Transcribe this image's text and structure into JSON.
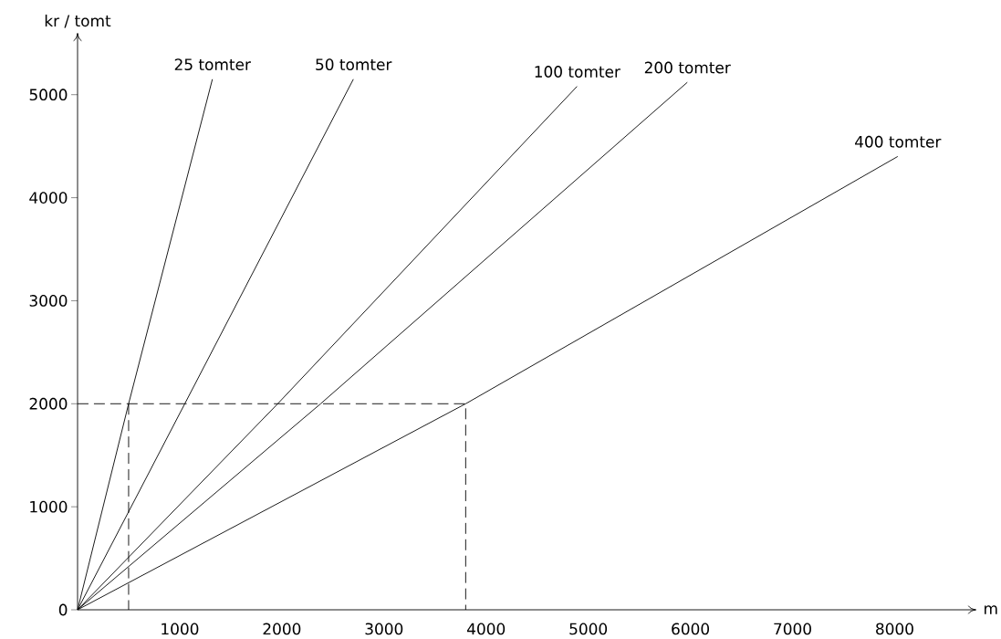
{
  "chart_data": {
    "type": "line",
    "xlabel": "m",
    "ylabel": "kr / tomt",
    "xlim": [
      0,
      8800
    ],
    "ylim": [
      0,
      5600
    ],
    "xticks": [
      1000,
      2000,
      3000,
      4000,
      5000,
      6000,
      7000,
      8000
    ],
    "yticks": [
      0,
      1000,
      2000,
      3000,
      4000,
      5000
    ],
    "marker": "none",
    "line_style": "solid",
    "series": [
      {
        "name": "25 tomter",
        "color": "#000000",
        "x": [
          0,
          500,
          1320
        ],
        "values": [
          0,
          2000,
          5150
        ]
      },
      {
        "name": "50 tomter",
        "color": "#000000",
        "x": [
          0,
          1050,
          2700
        ],
        "values": [
          0,
          2000,
          5150
        ]
      },
      {
        "name": "100 tomter",
        "color": "#000000",
        "x": [
          0,
          1960,
          4890
        ],
        "values": [
          0,
          2000,
          5080
        ]
      },
      {
        "name": "200 tomter",
        "color": "#000000",
        "x": [
          0,
          2380,
          5970
        ],
        "values": [
          0,
          2000,
          5120
        ]
      },
      {
        "name": "400 tomter",
        "color": "#000000",
        "x": [
          0,
          3800,
          8030
        ],
        "values": [
          0,
          2000,
          4400
        ]
      },
      {
        "color": "#000000",
        "line_style": "dashed",
        "x": [
          0,
          3800,
          3800
        ],
        "values": [
          2000,
          2000,
          0
        ]
      },
      {
        "color": "#000000",
        "line_style": "dashed",
        "x": [
          500,
          500
        ],
        "values": [
          2000,
          0
        ]
      }
    ]
  }
}
